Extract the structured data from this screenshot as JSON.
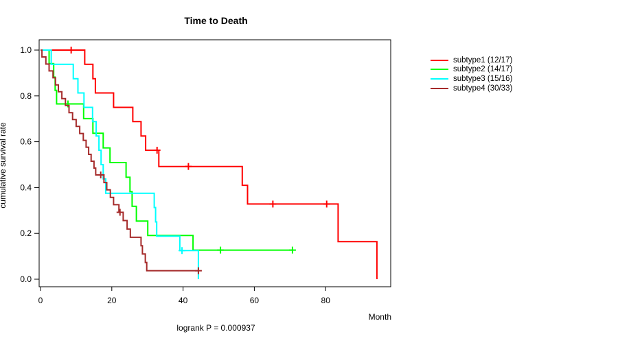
{
  "figure": {
    "title": "Time to Death",
    "footer": "logrank P = 0.000937"
  },
  "axes": {
    "x_label": "Month",
    "y_label": "cumulative survival rate",
    "x_ticks": [
      0,
      20,
      40,
      60,
      80
    ],
    "y_ticks": [
      0.0,
      0.2,
      0.4,
      0.6,
      0.8,
      1.0
    ]
  },
  "legend": {
    "items": [
      {
        "label": "subtype1 (12/17)",
        "color": "#FF0000"
      },
      {
        "label": "subtype2 (14/17)",
        "color": "#00FF00"
      },
      {
        "label": "subtype3 (15/16)",
        "color": "#00FFFF"
      },
      {
        "label": "subtype4 (30/33)",
        "color": "#A52A2A"
      }
    ]
  },
  "chart_data": {
    "type": "line",
    "variant": "kaplan-meier-step",
    "title": "Time to Death",
    "xlabel": "Month",
    "ylabel": "cumulative survival rate",
    "annotation": "logrank P = 0.000937",
    "xlim": [
      0,
      99
    ],
    "ylim": [
      0,
      1
    ],
    "legend_position": "right",
    "grid": false,
    "series": [
      {
        "name": "subtype1 (12/17)",
        "color": "#FF0000",
        "steps": [
          [
            0,
            1.0
          ],
          [
            12.4,
            0.938
          ],
          [
            14.7,
            0.875
          ],
          [
            15.4,
            0.813
          ],
          [
            20.5,
            0.75
          ],
          [
            25.9,
            0.688
          ],
          [
            28.2,
            0.625
          ],
          [
            29.5,
            0.563
          ],
          [
            33.2,
            0.492
          ],
          [
            56.6,
            0.41
          ],
          [
            58.1,
            0.328
          ],
          [
            83.5,
            0.164
          ],
          [
            94.4,
            0.0
          ]
        ],
        "censors": [
          [
            8.6,
            1.0
          ],
          [
            32.7,
            0.563
          ],
          [
            41.5,
            0.492
          ],
          [
            65.2,
            0.328
          ],
          [
            80.3,
            0.328
          ]
        ],
        "end_time": 94.4
      },
      {
        "name": "subtype2 (14/17)",
        "color": "#00FF00",
        "steps": [
          [
            0,
            1.0
          ],
          [
            2.4,
            0.941
          ],
          [
            3.7,
            0.882
          ],
          [
            4.1,
            0.824
          ],
          [
            4.5,
            0.765
          ],
          [
            12.1,
            0.701
          ],
          [
            14.7,
            0.637
          ],
          [
            17.6,
            0.573
          ],
          [
            19.5,
            0.509
          ],
          [
            24.0,
            0.445
          ],
          [
            25.1,
            0.382
          ],
          [
            25.7,
            0.318
          ],
          [
            26.9,
            0.254
          ],
          [
            30.1,
            0.191
          ],
          [
            42.8,
            0.127
          ]
        ],
        "censors": [
          [
            7.7,
            0.765
          ],
          [
            50.5,
            0.127
          ],
          [
            70.7,
            0.127
          ]
        ],
        "end_time": 70.7
      },
      {
        "name": "subtype3 (15/16)",
        "color": "#00FFFF",
        "steps": [
          [
            0,
            1.0
          ],
          [
            3.0,
            0.938
          ],
          [
            9.2,
            0.875
          ],
          [
            10.5,
            0.813
          ],
          [
            12.2,
            0.75
          ],
          [
            14.6,
            0.688
          ],
          [
            15.6,
            0.625
          ],
          [
            16.4,
            0.563
          ],
          [
            17.0,
            0.5
          ],
          [
            17.6,
            0.438
          ],
          [
            18.3,
            0.375
          ],
          [
            31.9,
            0.313
          ],
          [
            32.3,
            0.25
          ],
          [
            32.6,
            0.188
          ],
          [
            39.1,
            0.125
          ],
          [
            44.3,
            0.0
          ]
        ],
        "censors": [
          [
            39.7,
            0.125
          ]
        ],
        "end_time": 44.3
      },
      {
        "name": "subtype4 (30/33)",
        "color": "#A52A2A",
        "steps": [
          [
            0,
            1.0
          ],
          [
            0.4,
            0.97
          ],
          [
            1.5,
            0.939
          ],
          [
            2.4,
            0.909
          ],
          [
            3.5,
            0.879
          ],
          [
            4.2,
            0.848
          ],
          [
            5.0,
            0.818
          ],
          [
            6.0,
            0.788
          ],
          [
            7.0,
            0.758
          ],
          [
            8.0,
            0.727
          ],
          [
            9.0,
            0.697
          ],
          [
            10.0,
            0.667
          ],
          [
            11.0,
            0.636
          ],
          [
            12.0,
            0.606
          ],
          [
            12.8,
            0.576
          ],
          [
            13.5,
            0.545
          ],
          [
            14.2,
            0.515
          ],
          [
            15.0,
            0.485
          ],
          [
            15.5,
            0.455
          ],
          [
            17.8,
            0.422
          ],
          [
            18.6,
            0.39
          ],
          [
            19.6,
            0.357
          ],
          [
            20.5,
            0.325
          ],
          [
            22.0,
            0.292
          ],
          [
            23.2,
            0.256
          ],
          [
            24.3,
            0.219
          ],
          [
            25.2,
            0.183
          ],
          [
            28.2,
            0.146
          ],
          [
            28.6,
            0.11
          ],
          [
            29.4,
            0.073
          ],
          [
            29.8,
            0.037
          ]
        ],
        "censors": [
          [
            16.9,
            0.455
          ],
          [
            22.3,
            0.292
          ],
          [
            44.3,
            0.037
          ]
        ],
        "end_time": 44.3
      }
    ]
  }
}
